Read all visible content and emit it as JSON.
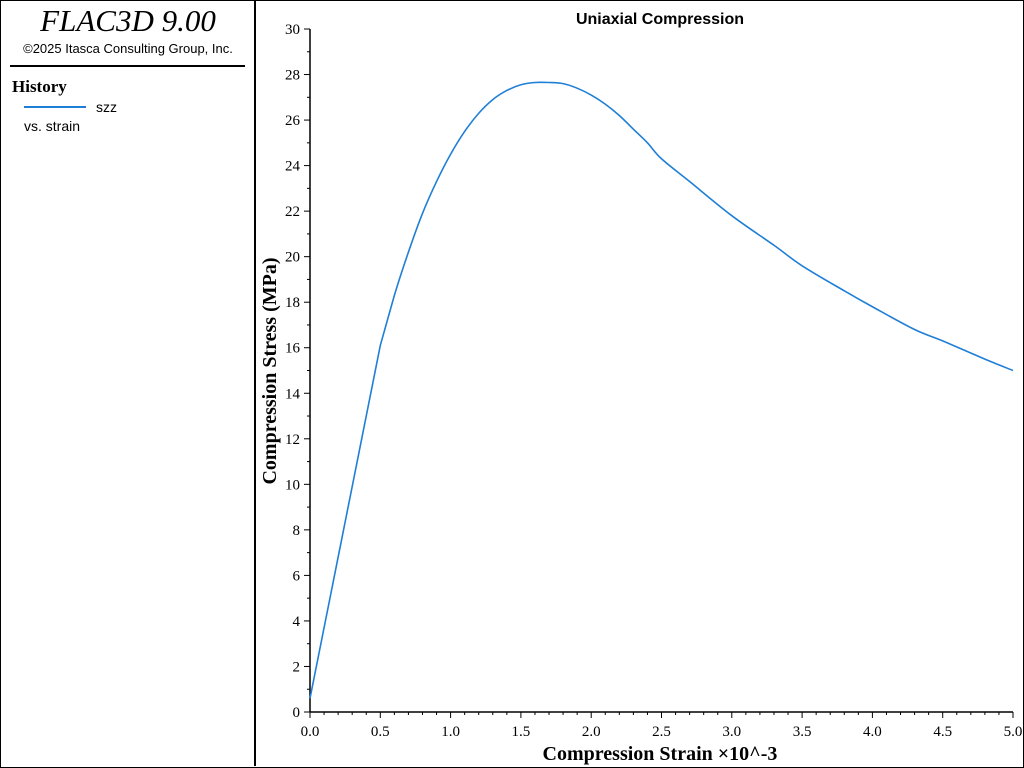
{
  "app": {
    "title": "FLAC3D 9.00",
    "copyright": "©2025 Itasca Consulting Group, Inc."
  },
  "legend": {
    "heading": "History",
    "entries": [
      {
        "name": "szz",
        "subtitle": "vs. strain",
        "color": "#1f7fd6"
      }
    ]
  },
  "chart_data": {
    "type": "line",
    "title": "Uniaxial Compression",
    "xlabel": "Compression Strain ×10^-3",
    "ylabel": "Compression Stress (MPa)",
    "xlim": [
      0,
      5
    ],
    "ylim": [
      0,
      30
    ],
    "x_ticks": [
      0.0,
      0.5,
      1.0,
      1.5,
      2.0,
      2.5,
      3.0,
      3.5,
      4.0,
      4.5,
      5.0
    ],
    "x_tick_labels": [
      "0.0",
      "0.5",
      "1.0",
      "1.5",
      "2.0",
      "2.5",
      "3.0",
      "3.5",
      "4.0",
      "4.5",
      "5.0"
    ],
    "y_ticks": [
      0,
      2,
      4,
      6,
      8,
      10,
      12,
      14,
      16,
      18,
      20,
      22,
      24,
      26,
      28,
      30
    ],
    "grid": false,
    "series": [
      {
        "name": "szz",
        "color": "#1f7fd6",
        "x": [
          0,
          0.1,
          0.2,
          0.3,
          0.4,
          0.5,
          0.6,
          0.7,
          0.8,
          0.9,
          1.0,
          1.1,
          1.2,
          1.3,
          1.4,
          1.5,
          1.6,
          1.7,
          1.8,
          1.9,
          2.0,
          2.1,
          2.2,
          2.3,
          2.4,
          2.5,
          2.7,
          3.0,
          3.3,
          3.5,
          3.8,
          4.0,
          4.3,
          4.5,
          4.8,
          5.0
        ],
        "y": [
          0.6,
          3.7,
          6.8,
          9.9,
          13.0,
          16.1,
          18.3,
          20.2,
          21.9,
          23.3,
          24.5,
          25.5,
          26.3,
          26.9,
          27.3,
          27.55,
          27.65,
          27.65,
          27.6,
          27.4,
          27.1,
          26.7,
          26.2,
          25.6,
          25.0,
          24.3,
          23.3,
          21.8,
          20.5,
          19.6,
          18.5,
          17.8,
          16.8,
          16.3,
          15.5,
          15.0
        ]
      }
    ]
  }
}
